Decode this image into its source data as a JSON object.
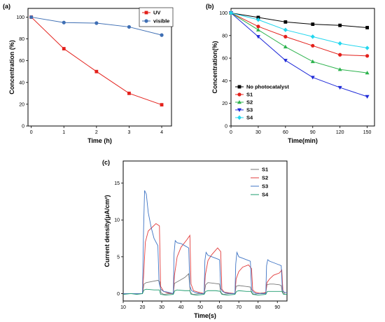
{
  "chart_data": [
    {
      "id": "a",
      "panel_label": "(a)",
      "type": "line",
      "xlabel": "Time (h)",
      "ylabel": "Concentration (%)",
      "xlim": [
        -0.1,
        4.3
      ],
      "ylim": [
        0,
        108
      ],
      "xticks": [
        0,
        1,
        2,
        3,
        4
      ],
      "yticks": [
        0,
        20,
        40,
        60,
        80,
        100
      ],
      "legend": "top-right",
      "series": [
        {
          "name": "UV",
          "color": "#e3201b",
          "marker": "square",
          "x": [
            0,
            1,
            2,
            3,
            4
          ],
          "y": [
            100,
            71,
            50,
            30,
            19.5
          ]
        },
        {
          "name": "visible",
          "color": "#3f6fb4",
          "marker": "circle",
          "x": [
            0,
            1,
            2,
            3,
            4
          ],
          "y": [
            100,
            95,
            94.5,
            91,
            83.5
          ]
        }
      ]
    },
    {
      "id": "b",
      "panel_label": "(b)",
      "type": "line",
      "xlabel": "Time(min)",
      "ylabel": "Concentration(%)",
      "xlim": [
        0,
        158
      ],
      "ylim": [
        0,
        104
      ],
      "xticks": [
        0,
        30,
        60,
        90,
        120,
        150
      ],
      "yticks": [
        0,
        20,
        40,
        60,
        80,
        100
      ],
      "legend": "bottom-left",
      "series": [
        {
          "name": "No photocatalyst",
          "color": "#000000",
          "marker": "square",
          "x": [
            0,
            30,
            60,
            90,
            120,
            150
          ],
          "y": [
            100,
            96,
            92,
            90,
            89,
            87
          ]
        },
        {
          "name": "S1",
          "color": "#e3201b",
          "marker": "circle",
          "x": [
            0,
            30,
            60,
            90,
            120,
            150
          ],
          "y": [
            100,
            88,
            79,
            71,
            63,
            62
          ]
        },
        {
          "name": "S2",
          "color": "#2bb24c",
          "marker": "triangle-up",
          "x": [
            0,
            30,
            60,
            90,
            120,
            150
          ],
          "y": [
            100,
            85,
            70,
            57,
            50,
            47
          ]
        },
        {
          "name": "S3",
          "color": "#1f2ad8",
          "marker": "triangle-down",
          "x": [
            0,
            30,
            60,
            90,
            120,
            150
          ],
          "y": [
            100,
            79,
            58,
            43,
            34,
            26
          ]
        },
        {
          "name": "S4",
          "color": "#22d6ee",
          "marker": "diamond",
          "x": [
            0,
            30,
            60,
            90,
            120,
            150
          ],
          "y": [
            100,
            94,
            85,
            79,
            73,
            69
          ]
        }
      ]
    },
    {
      "id": "c",
      "panel_label": "(c)",
      "type": "line",
      "xlabel": "Time(s)",
      "ylabel": "Current density(μA/cm²)",
      "xlim": [
        10,
        95
      ],
      "ylim": [
        -1,
        18
      ],
      "xticks": [
        10,
        20,
        30,
        40,
        50,
        60,
        70,
        80,
        90
      ],
      "yticks": [
        0,
        5,
        10,
        15
      ],
      "legend": "top-right",
      "series": [
        {
          "name": "S1",
          "color": "#777777",
          "x": [
            10,
            14,
            17,
            20,
            20.8,
            22,
            24,
            26,
            28,
            29,
            29.6,
            31,
            34,
            36,
            36.6,
            38,
            40,
            42,
            44,
            44.8,
            46,
            50,
            52,
            52.8,
            54,
            57,
            60,
            60.6,
            62,
            65,
            68,
            68.6,
            70,
            73,
            76,
            76.6,
            78,
            80,
            82,
            84,
            84.6,
            86,
            88,
            91,
            92,
            92.6,
            94
          ],
          "y": [
            0,
            0,
            0,
            0,
            1.3,
            1.5,
            1.6,
            1.7,
            1.8,
            1.6,
            0.1,
            -0.1,
            0,
            0,
            1.4,
            1.6,
            1.9,
            2.2,
            2.7,
            0.2,
            -0.1,
            0,
            0,
            1.2,
            1.5,
            1.4,
            1.3,
            0.1,
            -0.1,
            0,
            0,
            1.0,
            1.1,
            1.0,
            0.9,
            0.1,
            -0.1,
            0,
            0.1,
            0.1,
            1.2,
            1.3,
            1.3,
            1.2,
            1.1,
            0.1,
            0
          ]
        },
        {
          "name": "S2",
          "color": "#e23c3c",
          "x": [
            10,
            14,
            17,
            20,
            20.6,
            21.5,
            23,
            25,
            27,
            28.8,
            29.4,
            31,
            33,
            36,
            36.6,
            38,
            40,
            43,
            44.6,
            45.2,
            46.5,
            49,
            52,
            52.6,
            54,
            56,
            59,
            60.6,
            61.2,
            62.5,
            65,
            68,
            68.6,
            70,
            72,
            75,
            76.6,
            77.2,
            78.5,
            80,
            82,
            84,
            84.6,
            86,
            88,
            91,
            92.3,
            92.9,
            94
          ],
          "y": [
            0,
            0,
            0,
            0,
            2.5,
            7.0,
            8.5,
            9.0,
            9.5,
            9.2,
            1.0,
            0.3,
            0.1,
            0,
            2.5,
            5.0,
            6.3,
            7.3,
            7.9,
            1.3,
            0.4,
            0.2,
            0,
            2.5,
            4.5,
            5.3,
            6.2,
            5.7,
            0.6,
            0.2,
            0.1,
            0,
            2.0,
            3.0,
            3.6,
            3.9,
            3.4,
            0.5,
            0.2,
            0.1,
            0,
            0.2,
            1.5,
            2.0,
            2.5,
            2.8,
            3.2,
            0.3,
            0.1
          ]
        },
        {
          "name": "S3",
          "color": "#3f74c4",
          "x": [
            10,
            14,
            17,
            20,
            20.6,
            21.1,
            22,
            23,
            24.5,
            26,
            28,
            28.6,
            29.5,
            31,
            33,
            36,
            36.4,
            37,
            38,
            40,
            42,
            44,
            44.6,
            45.5,
            47,
            50,
            52,
            52.4,
            53,
            54,
            56,
            58,
            60,
            60.6,
            61.5,
            63,
            66,
            68,
            68.4,
            69,
            70,
            72,
            74,
            76,
            76.6,
            77.5,
            79,
            82,
            84,
            84.4,
            85,
            86,
            88,
            90,
            92,
            92.6,
            93.5,
            95
          ],
          "y": [
            0,
            0,
            0,
            0,
            9,
            14,
            13.5,
            11,
            9,
            7.5,
            6.5,
            1.5,
            0.6,
            0.3,
            0.2,
            0,
            5.5,
            7.2,
            6.9,
            6.8,
            6.5,
            6.2,
            1,
            0.4,
            0.2,
            0,
            0,
            4.5,
            5.6,
            5.2,
            5.0,
            4.8,
            4.6,
            0.7,
            0.3,
            0.1,
            0,
            0,
            4,
            5.6,
            5.0,
            4.8,
            4.6,
            4.4,
            0.6,
            0.2,
            0,
            0,
            0,
            3.8,
            4.6,
            4.4,
            4.2,
            4.0,
            3.8,
            0.5,
            0.2,
            0.1
          ]
        },
        {
          "name": "S4",
          "color": "#1e9c6f",
          "x": [
            10,
            14,
            17,
            20,
            20.8,
            22,
            26,
            28.8,
            29.4,
            32,
            36,
            36.8,
            38,
            42,
            44.6,
            45.2,
            48,
            52,
            52.8,
            54,
            58,
            60.6,
            61.2,
            64,
            68,
            68.8,
            70,
            74,
            76.6,
            77.2,
            80,
            84,
            84.8,
            86,
            90,
            92.6,
            93.2,
            95
          ],
          "y": [
            -0.1,
            0,
            -0.1,
            0,
            0.5,
            0.6,
            0.5,
            0.5,
            -0.1,
            -0.2,
            -0.1,
            0.4,
            0.5,
            0.4,
            0.4,
            -0.1,
            -0.2,
            -0.1,
            0.3,
            0.4,
            0.4,
            0.3,
            -0.1,
            -0.2,
            -0.1,
            0.3,
            0.4,
            0.3,
            0.3,
            -0.1,
            -0.2,
            -0.1,
            0.3,
            0.3,
            0.3,
            0.3,
            -0.1,
            -0.1
          ]
        }
      ]
    }
  ]
}
